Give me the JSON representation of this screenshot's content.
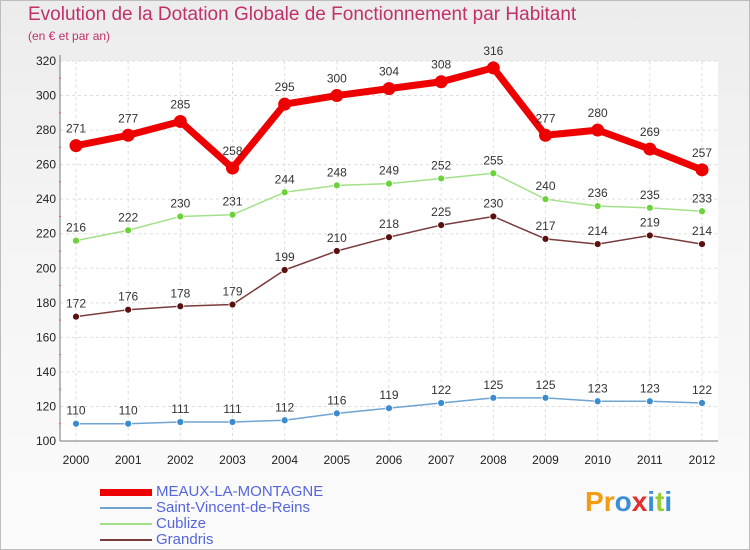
{
  "header": {
    "title": "Evolution de la Dotation Globale de Fonctionnement par Habitant",
    "subtitle": "(en € et par an)"
  },
  "logo": {
    "text": "Proxiti",
    "letters": [
      {
        "ch": "P",
        "color": "#f39c12"
      },
      {
        "ch": "r",
        "color": "#f39c12"
      },
      {
        "ch": "o",
        "color": "#3a8fd8"
      },
      {
        "ch": "x",
        "color": "#e03030"
      },
      {
        "ch": "i",
        "color": "#3a8fd8"
      },
      {
        "ch": "t",
        "color": "#9acd32"
      },
      {
        "ch": "i",
        "color": "#3a8fd8"
      }
    ]
  },
  "chart_data": {
    "type": "line",
    "title": "Evolution de la Dotation Globale de Fonctionnement par Habitant",
    "subtitle": "(en € et par an)",
    "x": [
      "2000",
      "2001",
      "2002",
      "2003",
      "2004",
      "2005",
      "2006",
      "2007",
      "2008",
      "2009",
      "2010",
      "2011",
      "2012"
    ],
    "ylim": [
      100,
      320
    ],
    "yticks": [
      100,
      120,
      140,
      160,
      180,
      200,
      220,
      240,
      260,
      280,
      300,
      320
    ],
    "grid": true,
    "legend_position": "bottom-left",
    "series": [
      {
        "name": "MEAUX-LA-MONTAGNE",
        "color": "#ee0000",
        "marker": "#ee0000",
        "width": 7,
        "values": [
          271,
          277,
          285,
          258,
          295,
          300,
          304,
          308,
          316,
          277,
          280,
          269,
          257
        ]
      },
      {
        "name": "Saint-Vincent-de-Reins",
        "color": "#6fa3d0",
        "marker": "#3b8bd0",
        "width": 1.5,
        "values": [
          110,
          110,
          111,
          111,
          112,
          116,
          119,
          122,
          125,
          125,
          123,
          123,
          122
        ]
      },
      {
        "name": "Cublize",
        "color": "#a3e08a",
        "marker": "#6cd23c",
        "width": 1.5,
        "values": [
          216,
          222,
          230,
          231,
          244,
          248,
          249,
          252,
          255,
          240,
          236,
          235,
          233
        ]
      },
      {
        "name": "Grandris",
        "color": "#7a3b3b",
        "marker": "#5a1010",
        "width": 1.5,
        "values": [
          172,
          176,
          178,
          179,
          199,
          210,
          218,
          225,
          230,
          217,
          214,
          219,
          214
        ]
      }
    ]
  }
}
